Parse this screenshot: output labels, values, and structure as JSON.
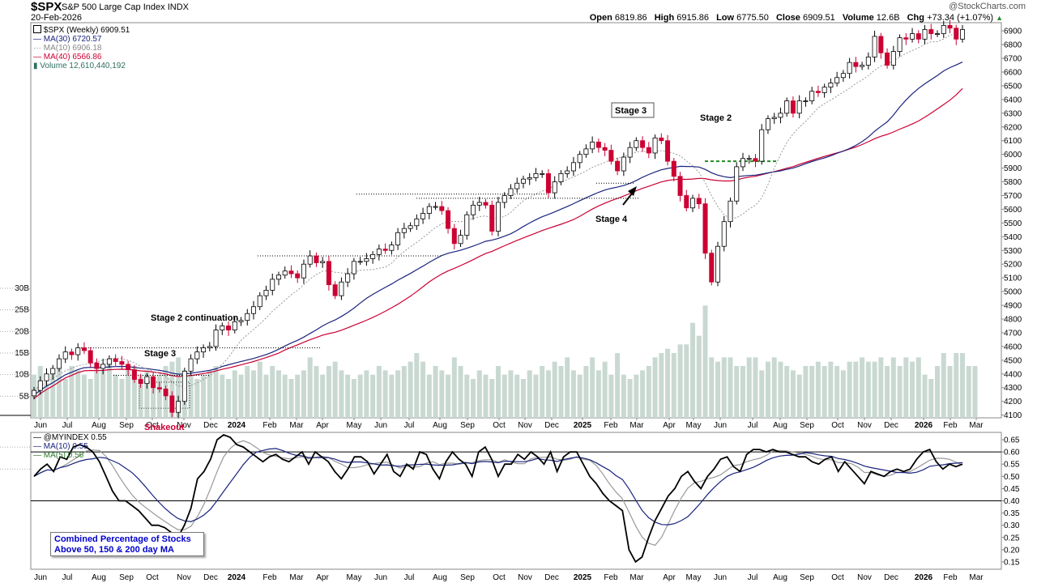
{
  "header": {
    "symbol": "$SPX",
    "name": "S&P 500 Large Cap Index",
    "exchange": "INDX",
    "date": "20-Feb-2026",
    "credit": "@StockCharts.com",
    "open_label": "Open",
    "open": "6819.86",
    "high_label": "High",
    "high": "6915.86",
    "low_label": "Low",
    "low": "6775.50",
    "close_label": "Close",
    "close": "6909.51",
    "volume_label": "Volume",
    "volume": "12.6B",
    "chg_label": "Chg",
    "chg": "+73.34 (+1.07%)"
  },
  "legend_price": {
    "main": "$SPX (Weekly) 6909.51",
    "ma30": "MA(30) 6720.57",
    "ma10": "MA(10) 6906.18",
    "ma40": "MA(40) 6566.86",
    "volume": "Volume 12,610,440,192"
  },
  "legend_ind": {
    "main": "@MYINDEX 0.55",
    "ma10": "MA(10) 0.55",
    "ma5": "MA(5) 0.56"
  },
  "indicator_box": {
    "line1": "Combined Percentage of Stocks",
    "line2": "Above 50, 150 & 200 day MA"
  },
  "colors": {
    "up_body": "#ffffff",
    "down_body": "#cc0033",
    "ma30": "#1a237e",
    "ma10": "#999999",
    "ma40": "#cc0033",
    "volume": "#c9d9d2",
    "indicator": "#000000",
    "ind_ma10": "#1a237e",
    "ind_ma5": "#999999",
    "box_text": "#0000cc",
    "stage_line": "#228b22"
  },
  "chart_data": [
    {
      "type": "candlestick",
      "title": "$SPX S&P 500 Large Cap Index (Weekly)",
      "x_months": [
        "Jun",
        "Jul",
        "Aug",
        "Sep",
        "Oct",
        "Nov",
        "Dec",
        "2024",
        "Feb",
        "Mar",
        "Apr",
        "May",
        "Jun",
        "Jul",
        "Aug",
        "Sep",
        "Oct",
        "Nov",
        "Dec",
        "2025",
        "Feb",
        "Mar",
        "Apr",
        "May",
        "Jun",
        "Jul",
        "Aug",
        "Sep",
        "Oct",
        "Nov",
        "Dec",
        "2026",
        "Feb",
        "Mar"
      ],
      "y_ticks": [
        4100,
        4200,
        4300,
        4400,
        4500,
        4600,
        4700,
        4800,
        4900,
        5000,
        5100,
        5200,
        5300,
        5400,
        5500,
        5600,
        5700,
        5800,
        5900,
        6000,
        6100,
        6200,
        6300,
        6400,
        6500,
        6600,
        6700,
        6800,
        6900
      ],
      "ylim": [
        4080,
        6960
      ],
      "weekly_close": [
        4280,
        4350,
        4400,
        4440,
        4510,
        4560,
        4540,
        4590,
        4570,
        4480,
        4440,
        4470,
        4510,
        4490,
        4470,
        4430,
        4360,
        4330,
        4380,
        4300,
        4290,
        4240,
        4120,
        4200,
        4420,
        4510,
        4560,
        4590,
        4600,
        4720,
        4750,
        4720,
        4780,
        4790,
        4840,
        4890,
        4970,
        5010,
        5090,
        5120,
        5150,
        5130,
        5100,
        5200,
        5260,
        5210,
        5220,
        5050,
        4970,
        5070,
        5130,
        5220,
        5220,
        5240,
        5270,
        5310,
        5300,
        5340,
        5430,
        5460,
        5480,
        5530,
        5570,
        5620,
        5620,
        5590,
        5460,
        5350,
        5410,
        5560,
        5630,
        5650,
        5630,
        5440,
        5650,
        5700,
        5750,
        5790,
        5820,
        5830,
        5860,
        5860,
        5720,
        5800,
        5860,
        5880,
        5940,
        6000,
        6040,
        6090,
        6050,
        6030,
        5950,
        5880,
        5980,
        6050,
        6100,
        6050,
        6010,
        6120,
        6100,
        5950,
        5840,
        5700,
        5610,
        5680,
        5640,
        5280,
        5070,
        5330,
        5510,
        5660,
        5910,
        5970,
        5970,
        5950,
        6180,
        6260,
        6270,
        6300,
        6390,
        6300,
        6390,
        6390,
        6460,
        6450,
        6490,
        6520,
        6560,
        6590,
        6670,
        6640,
        6650,
        6710,
        6860,
        6740,
        6650,
        6750,
        6850,
        6840,
        6880,
        6840,
        6910,
        6880,
        6880,
        6940,
        6920,
        6840,
        6910
      ],
      "ma30_endpoint": 6720.57,
      "ma10_endpoint": 6906.18,
      "ma40_endpoint": 6566.86,
      "volume_axis": [
        "5B",
        "10B",
        "15B",
        "20B",
        "25B",
        "30B"
      ],
      "volume_ylim": [
        0,
        30
      ],
      "volume_weekly_B": [
        10,
        12,
        8,
        11,
        13,
        9,
        12,
        11,
        10,
        9,
        12,
        11,
        13,
        10,
        9,
        11,
        12,
        10,
        11,
        9,
        10,
        12,
        13,
        14,
        11,
        10,
        9,
        10,
        11,
        12,
        10,
        9,
        11,
        10,
        12,
        11,
        13,
        10,
        12,
        11,
        10,
        9,
        10,
        11,
        14,
        12,
        10,
        12,
        13,
        11,
        10,
        9,
        10,
        11,
        10,
        12,
        11,
        10,
        11,
        12,
        13,
        15,
        13,
        10,
        12,
        11,
        10,
        14,
        12,
        10,
        9,
        11,
        10,
        9,
        12,
        10,
        11,
        10,
        9,
        11,
        10,
        12,
        11,
        13,
        12,
        14,
        11,
        10,
        12,
        14,
        11,
        13,
        10,
        15,
        10,
        9,
        10,
        11,
        12,
        14,
        15,
        16,
        15,
        17,
        17,
        22,
        19,
        26,
        14,
        13,
        14,
        14,
        12,
        12,
        14,
        14,
        11,
        13,
        14,
        13,
        12,
        11,
        10,
        12,
        12,
        13,
        12,
        13,
        12,
        11,
        13,
        13,
        14,
        13,
        13,
        14,
        12,
        14,
        12,
        14,
        13,
        14,
        10,
        9,
        12,
        15,
        12,
        15,
        15,
        12,
        12
      ],
      "annotations": [
        "Stage 2 continuation",
        "Stage 3",
        "Shakeout",
        "Stage 3",
        "Stage 4",
        "Stage 2"
      ]
    },
    {
      "type": "line",
      "title": "@MYINDEX Combined Percentage of Stocks Above 50, 150 & 200 day MA",
      "y_ticks": [
        0.15,
        0.2,
        0.25,
        0.3,
        0.35,
        0.4,
        0.45,
        0.5,
        0.55,
        0.6,
        0.65
      ],
      "ylim": [
        0.12,
        0.68
      ],
      "reference_lines": [
        0.4,
        0.6
      ],
      "values": [
        0.5,
        0.53,
        0.55,
        0.52,
        0.58,
        0.57,
        0.62,
        0.63,
        0.62,
        0.6,
        0.56,
        0.5,
        0.44,
        0.4,
        0.4,
        0.38,
        0.36,
        0.33,
        0.3,
        0.3,
        0.29,
        0.27,
        0.25,
        0.3,
        0.37,
        0.49,
        0.52,
        0.57,
        0.65,
        0.67,
        0.66,
        0.63,
        0.62,
        0.6,
        0.58,
        0.56,
        0.58,
        0.59,
        0.57,
        0.56,
        0.58,
        0.6,
        0.55,
        0.6,
        0.58,
        0.56,
        0.52,
        0.49,
        0.53,
        0.58,
        0.58,
        0.56,
        0.51,
        0.55,
        0.59,
        0.52,
        0.5,
        0.55,
        0.53,
        0.6,
        0.59,
        0.53,
        0.49,
        0.56,
        0.6,
        0.57,
        0.55,
        0.5,
        0.6,
        0.62,
        0.57,
        0.5,
        0.55,
        0.55,
        0.59,
        0.57,
        0.6,
        0.58,
        0.55,
        0.6,
        0.52,
        0.58,
        0.6,
        0.6,
        0.55,
        0.5,
        0.47,
        0.43,
        0.4,
        0.38,
        0.36,
        0.2,
        0.15,
        0.17,
        0.25,
        0.32,
        0.37,
        0.42,
        0.45,
        0.5,
        0.52,
        0.48,
        0.45,
        0.5,
        0.53,
        0.57,
        0.58,
        0.54,
        0.52,
        0.59,
        0.61,
        0.61,
        0.6,
        0.61,
        0.6,
        0.6,
        0.59,
        0.58,
        0.58,
        0.56,
        0.55,
        0.57,
        0.58,
        0.52,
        0.56,
        0.53,
        0.5,
        0.47,
        0.52,
        0.51,
        0.5,
        0.52,
        0.53,
        0.52,
        0.53,
        0.57,
        0.6,
        0.61,
        0.56,
        0.53,
        0.55,
        0.54,
        0.55
      ],
      "ma10_endpoint": 0.55,
      "ma5_endpoint": 0.56
    }
  ]
}
